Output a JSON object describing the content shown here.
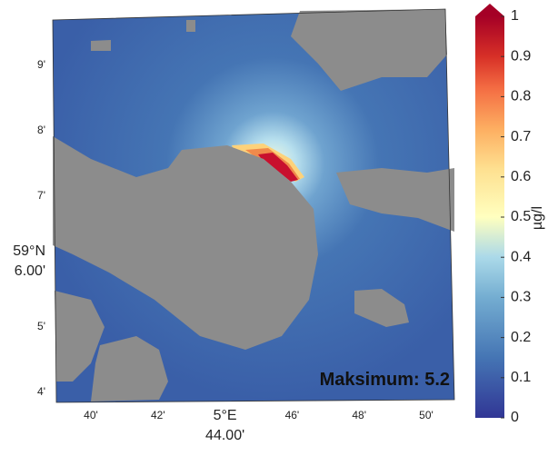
{
  "map": {
    "x_tick_labels": [
      [
        "40'"
      ],
      [
        "42'"
      ],
      [
        "5°E",
        "44.00'"
      ],
      [
        "46'"
      ],
      [
        "48'"
      ],
      [
        "50'"
      ]
    ],
    "y_tick_labels": [
      [
        "9'"
      ],
      [
        "8'"
      ],
      [
        "7'"
      ],
      [
        "59°N",
        "6.00'"
      ],
      [
        "5'"
      ],
      [
        "4'"
      ]
    ],
    "annotation": "Maksimum: 5.2"
  },
  "colorbar": {
    "label": "µg/l",
    "lim": [
      0,
      1
    ],
    "ticks": [
      0,
      0.1,
      0.2,
      0.3,
      0.4,
      0.5,
      0.6,
      0.7,
      0.8,
      0.9,
      1
    ]
  }
}
